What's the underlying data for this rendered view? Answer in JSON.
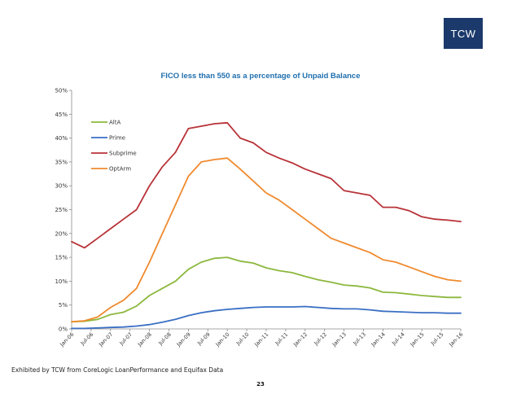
{
  "brand": {
    "logo_text": "TCW",
    "color": "#1b3a6b"
  },
  "footer": {
    "source": "Exhibited by TCW from CoreLogic LoanPerformance and Equifax Data",
    "page_number": "23"
  },
  "chart_data": {
    "type": "line",
    "title": "FICO less than 550 as a percentage of Unpaid Balance",
    "xlabel": "",
    "ylabel": "",
    "ylim": [
      0,
      50
    ],
    "y_ticks": [
      "0%",
      "5%",
      "10%",
      "15%",
      "20%",
      "25%",
      "30%",
      "35%",
      "40%",
      "45%",
      "50%"
    ],
    "x_ticks": [
      "Jan-06",
      "Jul-06",
      "Jan-07",
      "Jul-07",
      "Jan-08",
      "Jul-08",
      "Jan-09",
      "Jul-09",
      "Jan-10",
      "Jul-10",
      "Jan-11",
      "Jul-11",
      "Jan-12",
      "Jul-12",
      "Jan-13",
      "Jul-13",
      "Jan-14",
      "Jul-14",
      "Jan-15",
      "Jul-15",
      "Jan-16"
    ],
    "grid": false,
    "legend": "top-left",
    "series": [
      {
        "name": "AltA",
        "color": "#8cb83e",
        "values": [
          1.5,
          1.6,
          2.0,
          3.0,
          3.5,
          4.8,
          7.0,
          8.5,
          10.0,
          12.5,
          14.0,
          14.8,
          15.0,
          14.2,
          13.8,
          12.8,
          12.2,
          11.8,
          11.0,
          10.3,
          9.8,
          9.2,
          9.0,
          8.6,
          7.7,
          7.6,
          7.3,
          7.0,
          6.8,
          6.6,
          6.6
        ]
      },
      {
        "name": "Prime",
        "color": "#3a6fc4",
        "values": [
          0.1,
          0.1,
          0.2,
          0.3,
          0.4,
          0.6,
          0.9,
          1.4,
          2.0,
          2.8,
          3.4,
          3.8,
          4.1,
          4.3,
          4.5,
          4.6,
          4.6,
          4.6,
          4.7,
          4.5,
          4.3,
          4.2,
          4.2,
          4.0,
          3.7,
          3.6,
          3.5,
          3.4,
          3.4,
          3.3,
          3.3
        ]
      },
      {
        "name": "Subprime",
        "color": "#b83238",
        "values": [
          18.3,
          17.0,
          19.0,
          21.0,
          23.0,
          25.0,
          30.0,
          34.0,
          37.0,
          42.0,
          42.5,
          43.0,
          43.2,
          40.0,
          39.0,
          37.0,
          35.8,
          34.8,
          33.5,
          32.5,
          31.5,
          29.0,
          28.5,
          28.0,
          25.5,
          25.5,
          24.8,
          23.5,
          23.0,
          22.8,
          22.5
        ]
      },
      {
        "name": "OptArm",
        "color": "#f08a2e",
        "values": [
          1.5,
          1.7,
          2.5,
          4.5,
          6.0,
          8.5,
          14.0,
          20.0,
          26.0,
          32.0,
          35.0,
          35.5,
          35.8,
          33.5,
          31.0,
          28.5,
          27.0,
          25.0,
          23.0,
          21.0,
          19.0,
          18.0,
          17.0,
          16.0,
          14.5,
          14.0,
          13.0,
          12.0,
          11.0,
          10.3,
          10.0
        ]
      }
    ]
  }
}
